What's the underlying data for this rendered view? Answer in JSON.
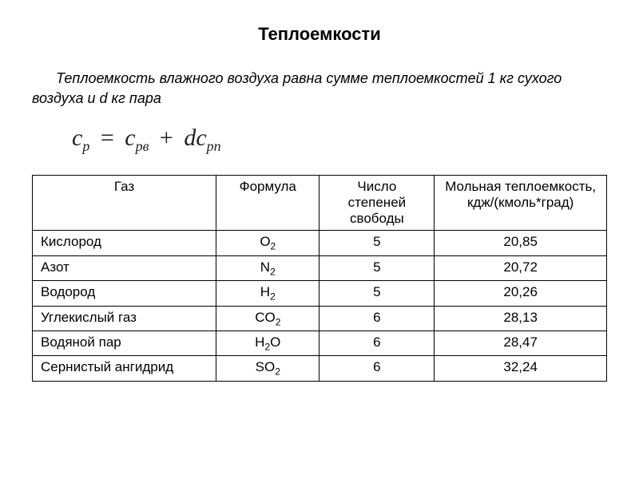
{
  "title": "Теплоемкости",
  "intro": "Теплоемкость влажного воздуха равна сумме теплоемкостей 1 кг  сухого воздуха и d кг пара",
  "equation": {
    "lhs_base": "c",
    "lhs_sub": "p",
    "term1_base": "c",
    "term1_sub": "pв",
    "coeff": "d",
    "term2_base": "c",
    "term2_sub": "pп"
  },
  "table": {
    "columns": [
      "Газ",
      "Формула",
      "Число степеней свободы",
      "Мольная теплоемкость, кдж/(кмоль*град)"
    ],
    "col_widths": [
      "32%",
      "18%",
      "20%",
      "30%"
    ],
    "rows": [
      {
        "gas": "Кислород",
        "formula_base": "O",
        "formula_sub": "2",
        "dof": "5",
        "cp": "20,85"
      },
      {
        "gas": "Азот",
        "formula_base": "N",
        "formula_sub": "2",
        "dof": "5",
        "cp": "20,72"
      },
      {
        "gas": "Водород",
        "formula_base": "H",
        "formula_sub": "2",
        "dof": "5",
        "cp": "20,26"
      },
      {
        "gas": "Углекислый газ",
        "formula_base": "CO",
        "formula_sub": "2",
        "dof": "6",
        "cp": "28,13"
      },
      {
        "gas": "Водяной пар",
        "formula_base": "H",
        "formula_sub": "2",
        "formula_tail": "O",
        "dof": "6",
        "cp": "28,47"
      },
      {
        "gas": "Сернистый ангидрид",
        "formula_base": "SO",
        "formula_sub": "2",
        "dof": "6",
        "cp": "32,24"
      }
    ]
  }
}
